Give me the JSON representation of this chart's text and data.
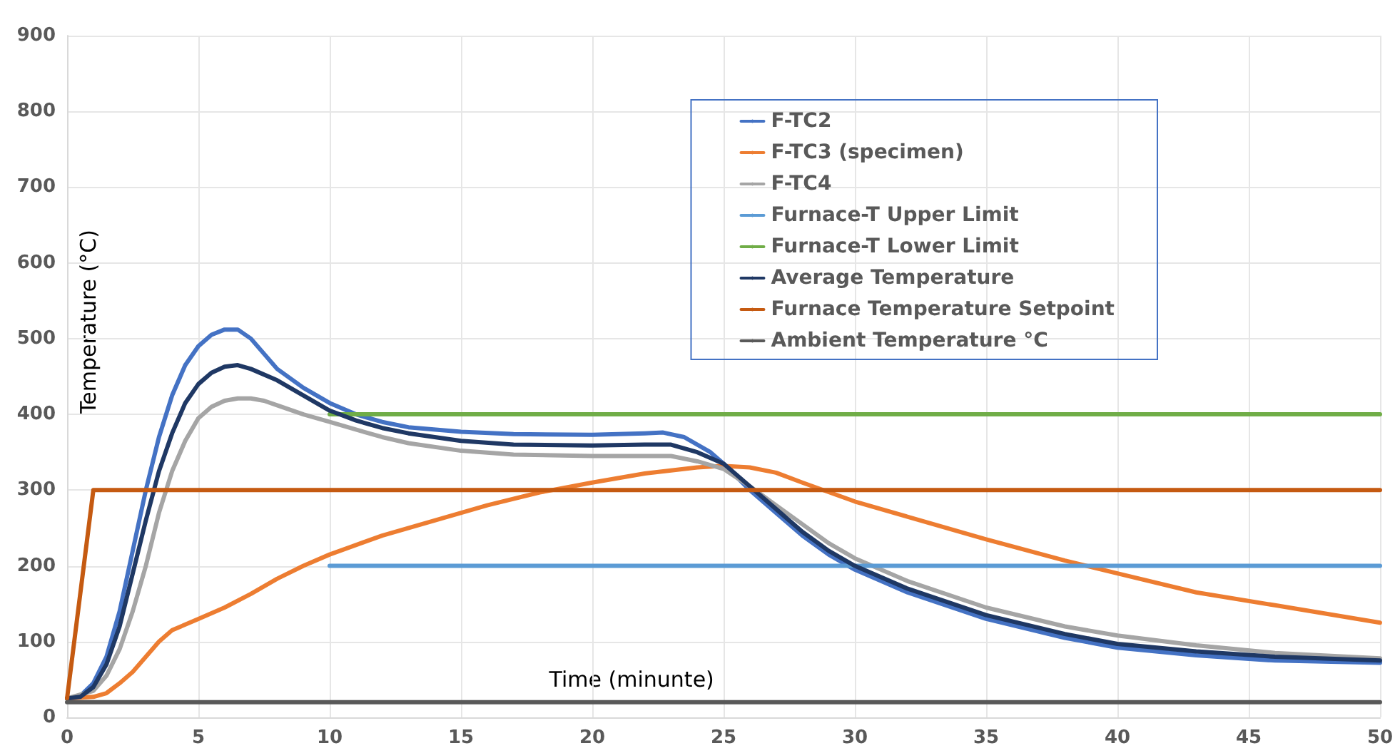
{
  "chart_data": {
    "type": "line",
    "xlabel": "Time (minunte)",
    "ylabel": "Temperature (°C)",
    "xlim": [
      0,
      50
    ],
    "xticks": [
      0,
      5,
      10,
      15,
      20,
      25,
      30,
      35,
      40,
      45,
      50
    ],
    "ylim": [
      0,
      900
    ],
    "yticks": [
      0,
      100,
      200,
      300,
      400,
      500,
      600,
      700,
      800,
      900
    ],
    "grid": true,
    "legend": "top right",
    "line_style": "solid",
    "series": [
      {
        "name": "F-TC2",
        "color": "#4472c4",
        "x": [
          0,
          0.5,
          1,
          1.5,
          2,
          2.5,
          3,
          3.5,
          4,
          4.5,
          5,
          5.5,
          6,
          6.5,
          7,
          7.5,
          8,
          9,
          10,
          11,
          12,
          13,
          15,
          17,
          20,
          22,
          22.7,
          23.5,
          24.5,
          25,
          26,
          27,
          28,
          29,
          30,
          32,
          35,
          38,
          40,
          43,
          46,
          50
        ],
        "values": [
          25,
          28,
          45,
          80,
          140,
          220,
          300,
          370,
          425,
          465,
          490,
          505,
          512,
          512,
          500,
          480,
          460,
          435,
          415,
          400,
          390,
          383,
          377,
          374,
          373,
          375,
          376,
          370,
          350,
          335,
          300,
          270,
          240,
          215,
          195,
          165,
          130,
          105,
          92,
          82,
          75,
          72
        ]
      },
      {
        "name": "F-TC3 (specimen)",
        "color": "#ed7d31",
        "x": [
          0,
          1,
          1.5,
          2,
          2.5,
          3,
          3.5,
          4,
          5,
          6,
          7,
          8,
          9,
          10,
          12,
          14,
          16,
          18,
          20,
          22,
          24,
          25,
          26,
          27,
          28,
          30,
          32,
          35,
          38,
          40,
          43,
          46,
          50
        ],
        "values": [
          25,
          27,
          32,
          45,
          60,
          80,
          100,
          115,
          130,
          145,
          163,
          183,
          200,
          215,
          240,
          260,
          280,
          297,
          310,
          322,
          330,
          332,
          330,
          323,
          310,
          285,
          265,
          235,
          207,
          190,
          165,
          148,
          125
        ]
      },
      {
        "name": "F-TC4",
        "color": "#a5a5a5",
        "x": [
          0,
          1,
          1.5,
          2,
          2.5,
          3,
          3.5,
          4,
          4.5,
          5,
          5.5,
          6,
          6.5,
          7,
          7.5,
          8,
          9,
          10,
          11,
          12,
          13,
          15,
          17,
          20,
          22,
          23,
          24,
          25,
          26,
          27,
          28,
          29,
          30,
          32,
          35,
          38,
          40,
          43,
          46,
          50
        ],
        "values": [
          25,
          35,
          55,
          90,
          140,
          200,
          270,
          325,
          365,
          395,
          410,
          418,
          421,
          421,
          418,
          412,
          400,
          390,
          380,
          370,
          362,
          352,
          347,
          345,
          345,
          345,
          338,
          328,
          305,
          280,
          255,
          230,
          210,
          180,
          145,
          120,
          108,
          95,
          85,
          78
        ]
      },
      {
        "name": "Furnace-T Upper Limit",
        "color": "#5b9bd5",
        "x": [
          10,
          50
        ],
        "values": [
          200,
          200
        ]
      },
      {
        "name": "Furnace-T Lower Limit",
        "color": "#70ad47",
        "x": [
          10,
          50
        ],
        "values": [
          400,
          400
        ]
      },
      {
        "name": "Average Temperature",
        "color": "#1f3864",
        "x": [
          0,
          0.5,
          1,
          1.5,
          2,
          2.5,
          3,
          3.5,
          4,
          4.5,
          5,
          5.5,
          6,
          6.5,
          7,
          8,
          9,
          10,
          11,
          12,
          13,
          15,
          17,
          20,
          22,
          23,
          24,
          25,
          26,
          27,
          28,
          29,
          30,
          32,
          35,
          38,
          40,
          43,
          46,
          50
        ],
        "values": [
          25,
          27,
          40,
          70,
          120,
          190,
          260,
          325,
          375,
          415,
          440,
          455,
          463,
          465,
          460,
          445,
          425,
          405,
          392,
          382,
          375,
          365,
          360,
          359,
          360,
          360,
          350,
          335,
          305,
          275,
          245,
          220,
          200,
          170,
          135,
          110,
          97,
          87,
          80,
          75
        ]
      },
      {
        "name": "Furnace Temperature Setpoint",
        "color": "#c55a11",
        "x": [
          0,
          1,
          50
        ],
        "values": [
          25,
          300,
          300
        ]
      },
      {
        "name": "Ambient Temperature °C",
        "color": "#595959",
        "x": [
          0,
          50
        ],
        "values": [
          20,
          20
        ]
      }
    ]
  }
}
